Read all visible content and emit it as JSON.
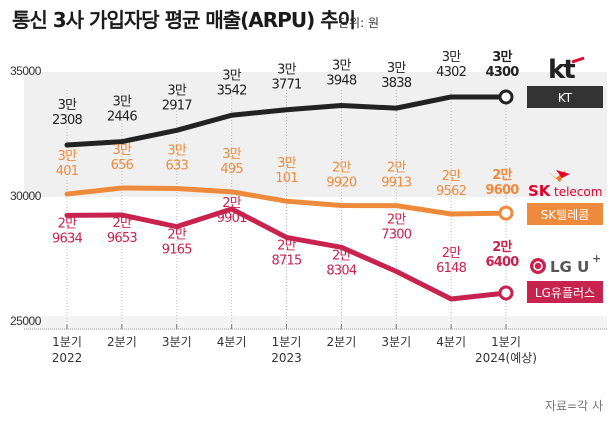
{
  "chart_data": {
    "type": "line",
    "title": "통신 3사 가입자당 평균 매출(ARPU) 추이",
    "unit": "단위: 원",
    "source": "자료=각 사",
    "xlabel": "",
    "ylabel": "",
    "ylim": [
      25000,
      35000
    ],
    "yticks": [
      "35000",
      "30000",
      "25000"
    ],
    "categories": [
      {
        "quarter": "1분기",
        "year": "2022"
      },
      {
        "quarter": "2분기",
        "year": ""
      },
      {
        "quarter": "3분기",
        "year": ""
      },
      {
        "quarter": "4분기",
        "year": ""
      },
      {
        "quarter": "1분기",
        "year": "2023"
      },
      {
        "quarter": "2분기",
        "year": ""
      },
      {
        "quarter": "3분기",
        "year": ""
      },
      {
        "quarter": "4분기",
        "year": ""
      },
      {
        "quarter": "1분기",
        "year": "2024(예상)"
      }
    ],
    "legend_placement": "right",
    "series": [
      {
        "name": "KT",
        "logo_text": "kt",
        "color": "#222222",
        "values": [
          32308,
          32446,
          32917,
          33542,
          33771,
          33948,
          33838,
          34302,
          34300
        ],
        "labels": [
          [
            "3만",
            "2308"
          ],
          [
            "3만",
            "2446"
          ],
          [
            "3만",
            "2917"
          ],
          [
            "3만",
            "3542"
          ],
          [
            "3만",
            "3771"
          ],
          [
            "3만",
            "3948"
          ],
          [
            "3만",
            "3838"
          ],
          [
            "3만",
            "4302"
          ],
          [
            "3만",
            "4300"
          ]
        ]
      },
      {
        "name": "SK텔레콤",
        "logo_text": "SK telecom",
        "color": "#ee8a3c",
        "values": [
          30401,
          30656,
          30633,
          30495,
          30101,
          29920,
          29913,
          29562,
          29600
        ],
        "labels": [
          [
            "3만",
            "401"
          ],
          [
            "3만",
            "656"
          ],
          [
            "3만",
            "633"
          ],
          [
            "3만",
            "495"
          ],
          [
            "3만",
            "101"
          ],
          [
            "2만",
            "9920"
          ],
          [
            "2만",
            "9913"
          ],
          [
            "2만",
            "9562"
          ],
          [
            "2만",
            "9600"
          ]
        ]
      },
      {
        "name": "LG유플러스",
        "logo_text": "LG U+",
        "color": "#c8234f",
        "values": [
          29634,
          29653,
          29165,
          29901,
          28715,
          28304,
          27300,
          26148,
          26400
        ],
        "labels": [
          [
            "2만",
            "9634"
          ],
          [
            "2만",
            "9653"
          ],
          [
            "2만",
            "9165"
          ],
          [
            "2만",
            "9901"
          ],
          [
            "2만",
            "8715"
          ],
          [
            "2만",
            "8304"
          ],
          [
            "2만",
            "7300"
          ],
          [
            "2만",
            "6148"
          ],
          [
            "2만",
            "6400"
          ]
        ]
      }
    ]
  }
}
